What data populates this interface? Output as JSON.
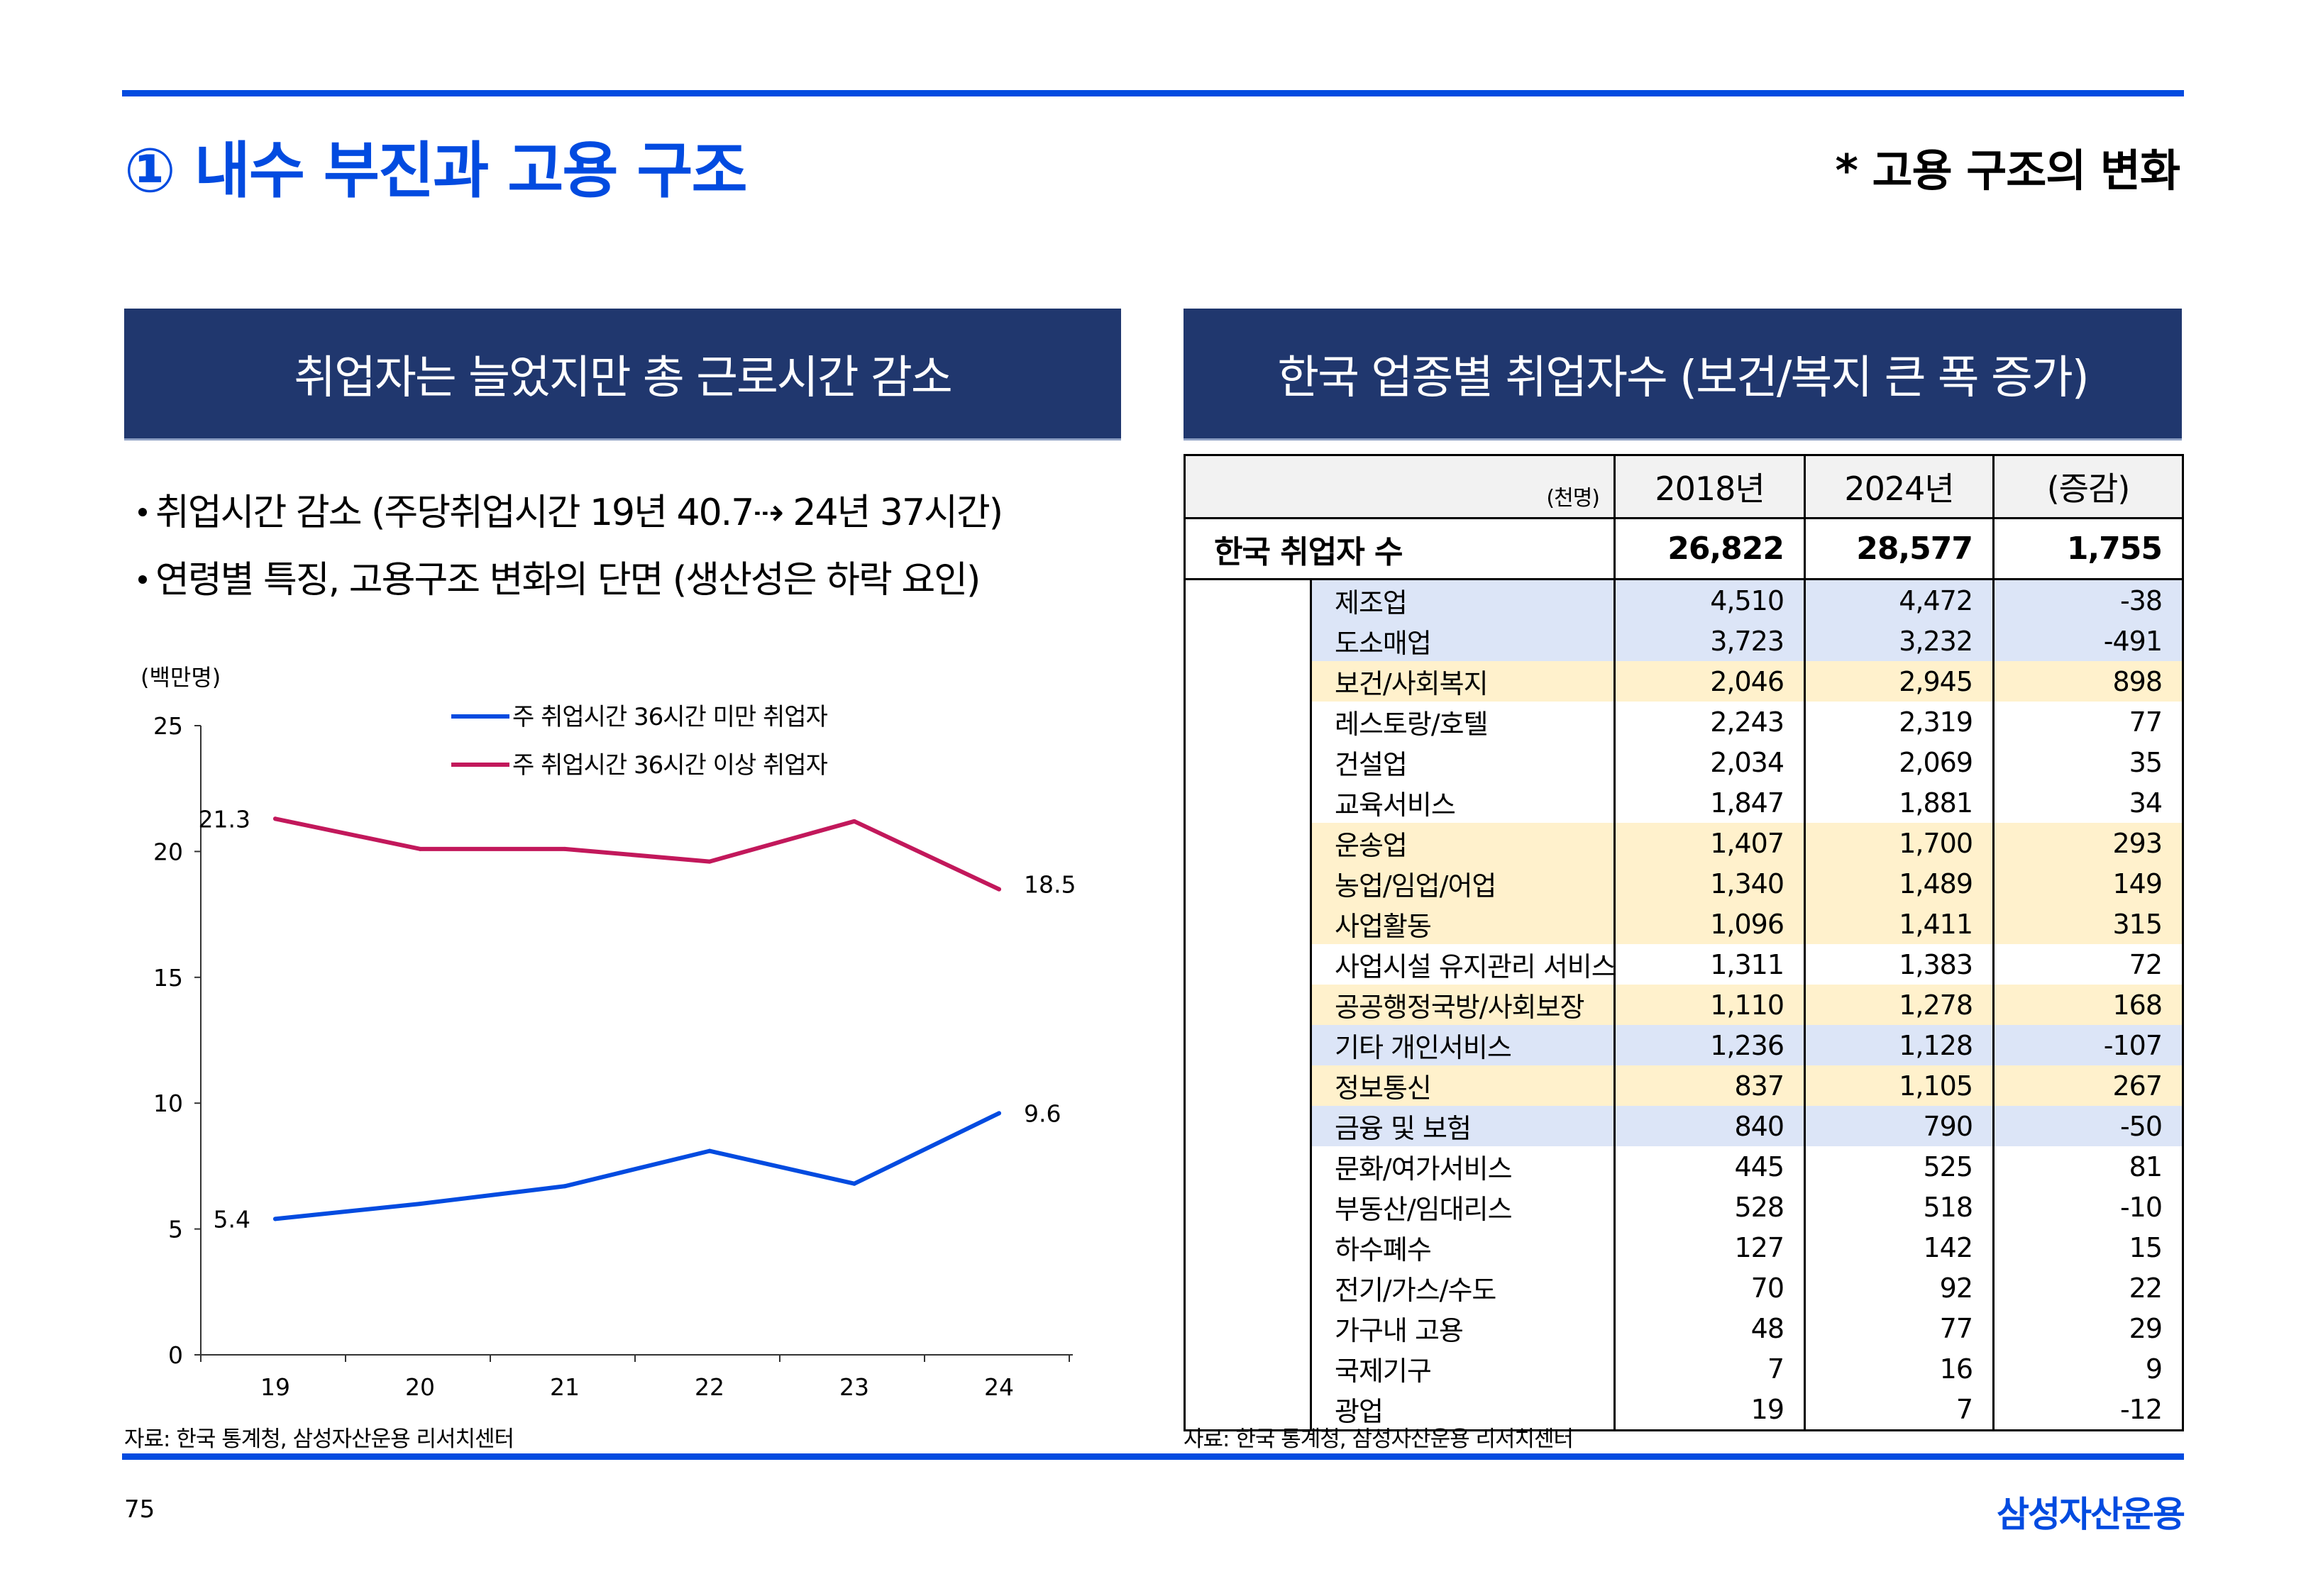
{
  "header": {
    "title": "① 내수 부진과 고용 구조",
    "subtitle": "* 고용 구조의 변화"
  },
  "left_panel": {
    "header": "취업자는 늘었지만 총 근로시간 감소",
    "bullets": [
      "취업시간 감소 (주당취업시간 19년 40.7⇢ 24년 37시간)",
      "연령별 특징, 고용구조 변화의 단면 (생산성은 하락 요인)"
    ],
    "source": "자료: 한국 통계청, 삼성자산운용 리서치센터"
  },
  "chart_data": {
    "type": "line",
    "title": "",
    "unit_label": "(백만명)",
    "xlabel": "",
    "ylabel": "(백만명)",
    "x": [
      "19",
      "20",
      "21",
      "22",
      "23",
      "24"
    ],
    "ylim": [
      0,
      25
    ],
    "yticks": [
      0,
      5,
      10,
      15,
      20,
      25
    ],
    "grid": false,
    "legend_position": "top-center",
    "series": [
      {
        "name": "주 취업시간 36시간 미만 취업자",
        "color": "#024be0",
        "values": [
          5.4,
          6.0,
          6.7,
          8.1,
          6.8,
          9.6
        ],
        "labels": {
          "first": "5.4",
          "last": "9.6"
        }
      },
      {
        "name": "주 취업시간 36시간 이상 취업자",
        "color": "#c2185b",
        "values": [
          21.3,
          20.1,
          20.1,
          19.6,
          21.2,
          18.5
        ],
        "labels": {
          "first": "21.3",
          "last": "18.5"
        }
      }
    ]
  },
  "right_panel": {
    "header": "한국 업종별 취업자수 (보건/복지 큰 폭 증가)",
    "table": {
      "unit": "(천명)",
      "columns": [
        "2018년",
        "2024년",
        "(증감)"
      ],
      "total": {
        "label": "한국 취업자 수",
        "y2018": "26,822",
        "y2024": "28,577",
        "change": "1,755"
      },
      "rows": [
        {
          "label": "제조업",
          "y2018": "4,510",
          "y2024": "4,472",
          "change": "-38",
          "highlight": "blue"
        },
        {
          "label": "도소매업",
          "y2018": "3,723",
          "y2024": "3,232",
          "change": "-491",
          "highlight": "blue"
        },
        {
          "label": "보건/사회복지",
          "y2018": "2,046",
          "y2024": "2,945",
          "change": "898",
          "highlight": "yellow"
        },
        {
          "label": "레스토랑/호텔",
          "y2018": "2,243",
          "y2024": "2,319",
          "change": "77",
          "highlight": "none"
        },
        {
          "label": "건설업",
          "y2018": "2,034",
          "y2024": "2,069",
          "change": "35",
          "highlight": "none"
        },
        {
          "label": "교육서비스",
          "y2018": "1,847",
          "y2024": "1,881",
          "change": "34",
          "highlight": "none"
        },
        {
          "label": "운송업",
          "y2018": "1,407",
          "y2024": "1,700",
          "change": "293",
          "highlight": "yellow"
        },
        {
          "label": "농업/임업/어업",
          "y2018": "1,340",
          "y2024": "1,489",
          "change": "149",
          "highlight": "yellow"
        },
        {
          "label": "사업활동",
          "y2018": "1,096",
          "y2024": "1,411",
          "change": "315",
          "highlight": "yellow"
        },
        {
          "label": "사업시설 유지관리 서비스",
          "y2018": "1,311",
          "y2024": "1,383",
          "change": "72",
          "highlight": "none"
        },
        {
          "label": "공공행정국방/사회보장",
          "y2018": "1,110",
          "y2024": "1,278",
          "change": "168",
          "highlight": "yellow"
        },
        {
          "label": "기타 개인서비스",
          "y2018": "1,236",
          "y2024": "1,128",
          "change": "-107",
          "highlight": "blue"
        },
        {
          "label": "정보통신",
          "y2018": "837",
          "y2024": "1,105",
          "change": "267",
          "highlight": "yellow"
        },
        {
          "label": "금융 및 보험",
          "y2018": "840",
          "y2024": "790",
          "change": "-50",
          "highlight": "blue"
        },
        {
          "label": "문화/여가서비스",
          "y2018": "445",
          "y2024": "525",
          "change": "81",
          "highlight": "none"
        },
        {
          "label": "부동산/임대리스",
          "y2018": "528",
          "y2024": "518",
          "change": "-10",
          "highlight": "none"
        },
        {
          "label": "하수폐수",
          "y2018": "127",
          "y2024": "142",
          "change": "15",
          "highlight": "none"
        },
        {
          "label": "전기/가스/수도",
          "y2018": "70",
          "y2024": "92",
          "change": "22",
          "highlight": "none"
        },
        {
          "label": "가구내 고용",
          "y2018": "48",
          "y2024": "77",
          "change": "29",
          "highlight": "none"
        },
        {
          "label": "국제기구",
          "y2018": "7",
          "y2024": "16",
          "change": "9",
          "highlight": "none"
        },
        {
          "label": "광업",
          "y2018": "19",
          "y2024": "7",
          "change": "-12",
          "highlight": "none"
        }
      ]
    },
    "source": "자료: 한국 통계청, 삼성자산운용 리서치센터"
  },
  "footer": {
    "page_number": "75",
    "brand": "삼성자산운용"
  },
  "colors": {
    "accent_blue": "#024be0",
    "header_navy": "#20376e",
    "series_blue": "#024be0",
    "series_magenta": "#c2185b",
    "highlight_blue": "#dce5f7",
    "highlight_yellow": "#fff1cc"
  }
}
